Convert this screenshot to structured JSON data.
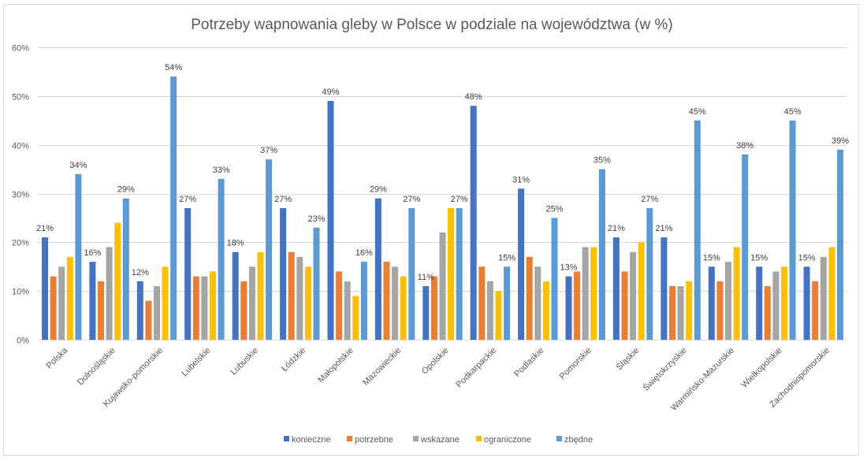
{
  "chart_data": {
    "type": "bar",
    "title": "Potrzeby wapnowania gleby w Polsce w podziale na województwa (w %)",
    "xlabel": "",
    "ylabel": "",
    "ylim": [
      0,
      60
    ],
    "y_ticks": [
      "0%",
      "10%",
      "20%",
      "30%",
      "40%",
      "50%",
      "60%"
    ],
    "y_tick_values": [
      0,
      10,
      20,
      30,
      40,
      50,
      60
    ],
    "grid": true,
    "legend_position": "bottom",
    "categories": [
      "Polska",
      "Dolnośląskie",
      "Kujawsko-pomorskie",
      "Lubelskie",
      "Lubuskie",
      "Łódzkie",
      "Małopolskie",
      "Mazowieckie",
      "Opolskie",
      "Podkarpackie",
      "Podlaskie",
      "Pomorskie",
      "Śląskie",
      "Świętokrzyskie",
      "Warmińsko-Mazurskie",
      "Wielkopolskie",
      "Zachodniopomorskie"
    ],
    "series": [
      {
        "name": "konieczne",
        "color": "#4472c4",
        "labeled": true,
        "values": [
          21,
          16,
          12,
          27,
          18,
          27,
          49,
          29,
          11,
          48,
          31,
          13,
          21,
          21,
          15,
          15,
          15
        ]
      },
      {
        "name": "potrzebne",
        "color": "#ed7d31",
        "labeled": false,
        "values": [
          13,
          12,
          8,
          13,
          12,
          18,
          14,
          16,
          13,
          15,
          17,
          14,
          14,
          11,
          12,
          11,
          12
        ]
      },
      {
        "name": "wskazane",
        "color": "#a5a5a5",
        "labeled": false,
        "values": [
          15,
          19,
          11,
          13,
          15,
          17,
          12,
          15,
          22,
          12,
          15,
          19,
          18,
          11,
          16,
          14,
          17
        ]
      },
      {
        "name": "ograniczone",
        "color": "#ffc000",
        "labeled": false,
        "values": [
          17,
          24,
          15,
          14,
          18,
          15,
          9,
          13,
          27,
          10,
          12,
          19,
          20,
          12,
          19,
          15,
          19
        ]
      },
      {
        "name": "zbędne",
        "color": "#5b9bd5",
        "labeled": true,
        "values": [
          34,
          29,
          54,
          33,
          37,
          23,
          16,
          27,
          27,
          15,
          25,
          35,
          27,
          45,
          38,
          45,
          39
        ]
      }
    ],
    "value_suffix": "%"
  }
}
